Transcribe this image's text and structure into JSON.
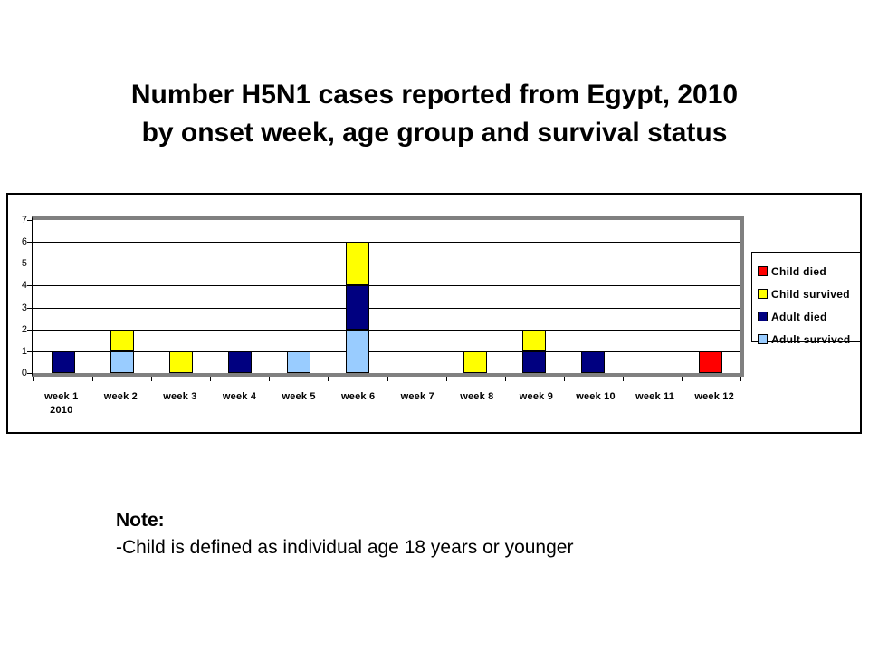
{
  "title": {
    "line1": "Number H5N1 cases reported from Egypt, 2010",
    "line2": "by onset week, age group and survival status"
  },
  "note": {
    "heading": "Note:",
    "body": "-Child is defined as individual age 18 years or younger"
  },
  "chart_data": {
    "type": "bar",
    "stacked": true,
    "title": "Number H5N1 cases reported from Egypt, 2010 by onset week, age group and survival status",
    "categories": [
      "week 1",
      "week 2",
      "week 3",
      "week 4",
      "week 5",
      "week 6",
      "week 7",
      "week 8",
      "week 9",
      "week 10",
      "week 11",
      "week 12"
    ],
    "first_category_year_label": "2010",
    "series": [
      {
        "name": "Adult survived",
        "color": "#99CCFF",
        "values": [
          0,
          1,
          0,
          0,
          1,
          2,
          0,
          0,
          0,
          0,
          0,
          0
        ]
      },
      {
        "name": "Adult died",
        "color": "#000080",
        "values": [
          1,
          0,
          0,
          1,
          0,
          2,
          0,
          0,
          1,
          1,
          0,
          0
        ]
      },
      {
        "name": "Child survived",
        "color": "#FFFF00",
        "values": [
          0,
          1,
          1,
          0,
          0,
          2,
          0,
          1,
          1,
          0,
          0,
          0
        ]
      },
      {
        "name": "Child died",
        "color": "#FF0000",
        "values": [
          0,
          0,
          0,
          0,
          0,
          0,
          0,
          0,
          0,
          0,
          0,
          1
        ]
      }
    ],
    "legend": {
      "position": "right",
      "entries": [
        {
          "label": "Child died",
          "color": "#FF0000"
        },
        {
          "label": "Child survived",
          "color": "#FFFF00"
        },
        {
          "label": "Adult died",
          "color": "#000080"
        },
        {
          "label": "Adult survived",
          "color": "#99CCFF"
        }
      ]
    },
    "ylim": [
      0,
      7
    ],
    "yticks": [
      0,
      1,
      2,
      3,
      4,
      5,
      6,
      7
    ],
    "grid": true,
    "colors": {
      "plot_border": "#808080",
      "bar_outline": "#000000",
      "background": "#FFFFFF"
    }
  }
}
